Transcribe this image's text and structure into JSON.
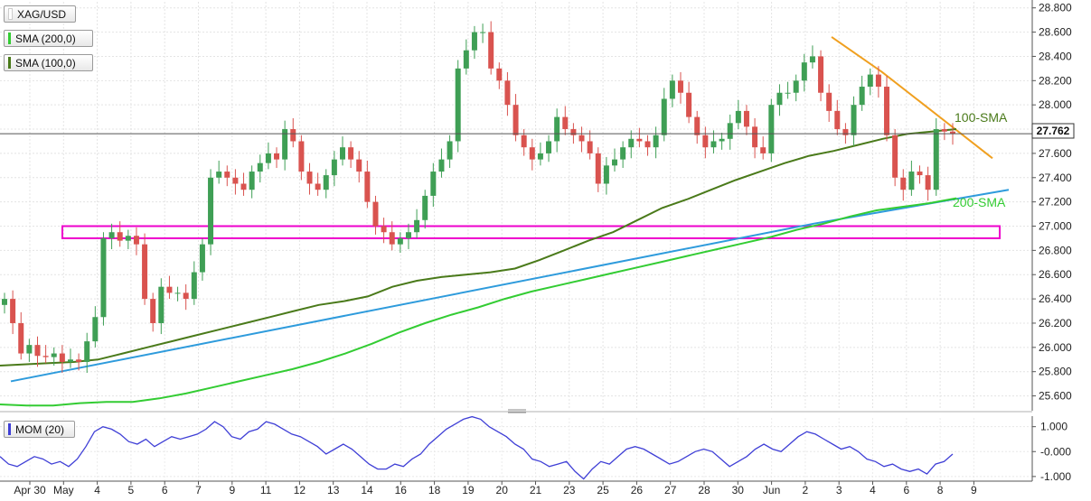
{
  "symbol": "XAG/USD",
  "indicators": [
    {
      "label": "SMA (200,0)",
      "color": "#33cc33"
    },
    {
      "label": "SMA (100,0)",
      "color": "#4a7a1a"
    }
  ],
  "momentum_label": "MOM (20)",
  "last_price": "27.762",
  "annotations": {
    "sma100": "100-SMA",
    "sma200": "200-SMA"
  },
  "colors": {
    "up": "#3f9f55",
    "down": "#d9534f",
    "sma100": "#4a7a1a",
    "sma200": "#33cc33",
    "support_line": "#2e9bdc",
    "resistance_line": "#f0a020",
    "zone": "#ee00cc",
    "momentum": "#3f3fd6"
  },
  "chart_data": {
    "type": "candlestick",
    "title": "XAG/USD",
    "ylim": [
      25.5,
      28.85
    ],
    "y_ticks": [
      "28.800",
      "28.600",
      "28.400",
      "28.200",
      "28.000",
      "27.800",
      "27.600",
      "27.400",
      "27.200",
      "27.000",
      "26.800",
      "26.600",
      "26.400",
      "26.200",
      "26.000",
      "25.800",
      "25.600"
    ],
    "x_ticks": [
      "Apr 30",
      "May",
      "4",
      "5",
      "6",
      "7",
      "9",
      "11",
      "12",
      "13",
      "14",
      "16",
      "18",
      "19",
      "20",
      "21",
      "23",
      "25",
      "26",
      "27",
      "28",
      "30",
      "Jun",
      "2",
      "3",
      "4",
      "6",
      "8",
      "9"
    ],
    "close_series": [
      26.4,
      26.2,
      25.95,
      26.02,
      25.93,
      25.92,
      25.95,
      25.88,
      25.9,
      25.88,
      26.05,
      26.25,
      26.9,
      26.95,
      26.88,
      26.92,
      26.85,
      26.4,
      26.2,
      26.5,
      26.45,
      26.45,
      26.4,
      26.62,
      26.85,
      27.4,
      27.45,
      27.4,
      27.35,
      27.3,
      27.45,
      27.52,
      27.6,
      27.55,
      27.8,
      27.7,
      27.45,
      27.35,
      27.3,
      27.42,
      27.55,
      27.65,
      27.55,
      27.45,
      27.2,
      27.0,
      26.95,
      26.85,
      26.9,
      26.95,
      27.05,
      27.25,
      27.45,
      27.55,
      27.7,
      28.3,
      28.45,
      28.6,
      28.6,
      28.3,
      28.2,
      28.0,
      27.75,
      27.65,
      27.55,
      27.6,
      27.7,
      27.9,
      27.8,
      27.75,
      27.7,
      27.6,
      27.35,
      27.5,
      27.55,
      27.65,
      27.72,
      27.7,
      27.65,
      27.75,
      28.05,
      28.2,
      28.1,
      27.9,
      27.75,
      27.65,
      27.7,
      27.72,
      27.85,
      27.95,
      27.82,
      27.65,
      27.6,
      28.0,
      28.1,
      28.1,
      28.2,
      28.35,
      28.4,
      28.1,
      27.95,
      27.8,
      27.75,
      28.0,
      28.15,
      28.25,
      28.15,
      27.75,
      27.4,
      27.3,
      27.45,
      27.42,
      27.3,
      27.8,
      27.78,
      27.762
    ],
    "sma100": [
      25.85,
      25.86,
      25.87,
      25.88,
      25.9,
      25.95,
      26.0,
      26.05,
      26.1,
      26.15,
      26.2,
      26.25,
      26.3,
      26.35,
      26.38,
      26.42,
      26.5,
      26.55,
      26.58,
      26.6,
      26.62,
      26.65,
      26.72,
      26.8,
      26.88,
      26.95,
      27.05,
      27.15,
      27.22,
      27.3,
      27.38,
      27.45,
      27.52,
      27.58,
      27.62,
      27.67,
      27.72,
      27.76,
      27.78,
      27.8
    ],
    "sma200": [
      25.53,
      25.52,
      25.52,
      25.54,
      25.55,
      25.55,
      25.58,
      25.62,
      25.67,
      25.72,
      25.77,
      25.82,
      25.88,
      25.95,
      26.03,
      26.12,
      26.2,
      26.27,
      26.33,
      26.4,
      26.46,
      26.51,
      26.56,
      26.61,
      26.66,
      26.71,
      26.76,
      26.81,
      26.86,
      26.91,
      26.97,
      27.02,
      27.08,
      27.13,
      27.16,
      27.19,
      27.23
    ],
    "support_line": [
      [
        25.72
      ],
      [
        27.02
      ],
      [
        27.3
      ]
    ],
    "resistance_line": [
      [
        28.56
      ],
      [
        28.27
      ],
      [
        27.56
      ]
    ],
    "zone": [
      26.9,
      27.0
    ],
    "momentum": {
      "label": "MOM (20)",
      "ylim": [
        -1.15,
        1.35
      ],
      "y_ticks": [
        "1.000",
        "-0.000",
        "-1.000"
      ],
      "values": [
        -0.2,
        -0.5,
        -0.6,
        -0.4,
        -0.2,
        -0.3,
        -0.5,
        -0.4,
        -0.6,
        -0.3,
        0.2,
        0.8,
        1.0,
        0.9,
        0.7,
        0.4,
        0.3,
        0.5,
        0.2,
        0.4,
        0.6,
        0.5,
        0.6,
        0.7,
        0.9,
        1.2,
        1.0,
        0.6,
        0.5,
        0.8,
        0.9,
        1.2,
        1.1,
        0.9,
        0.7,
        0.6,
        0.4,
        0.2,
        -0.1,
        0.1,
        0.3,
        0.1,
        -0.2,
        -0.5,
        -0.7,
        -0.7,
        -0.5,
        -0.6,
        -0.3,
        -0.1,
        0.3,
        0.6,
        0.9,
        1.1,
        1.3,
        1.4,
        1.3,
        1.0,
        0.8,
        0.6,
        0.3,
        0.1,
        -0.3,
        -0.4,
        -0.6,
        -0.5,
        -0.4,
        -0.8,
        -1.1,
        -0.7,
        -0.4,
        -0.5,
        -0.2,
        0.1,
        0.2,
        0.1,
        -0.1,
        -0.3,
        -0.5,
        -0.4,
        -0.2,
        0.0,
        0.1,
        0.0,
        -0.3,
        -0.6,
        -0.4,
        -0.2,
        0.1,
        0.3,
        0.1,
        0.0,
        0.3,
        0.6,
        0.8,
        0.7,
        0.5,
        0.3,
        0.1,
        0.2,
        0.0,
        -0.3,
        -0.4,
        -0.6,
        -0.5,
        -0.7,
        -0.8,
        -0.7,
        -0.9,
        -0.5,
        -0.4,
        -0.1
      ]
    }
  }
}
